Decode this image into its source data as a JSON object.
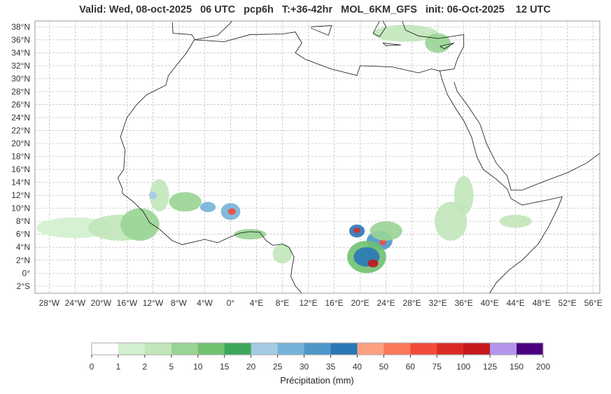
{
  "title": "Valid: Wed, 08-oct-2025   06 UTC   pcp6h   T:+36-42hr   MOL_6KM_GFS   init: 06-Oct-2025    12 UTC",
  "map": {
    "lon_range": [
      -30.2,
      57
    ],
    "lat_range": [
      -3.1,
      38.9
    ],
    "lat_ticks": [
      {
        "v": 38,
        "t": "38°N"
      },
      {
        "v": 36,
        "t": "36°N"
      },
      {
        "v": 34,
        "t": "34°N"
      },
      {
        "v": 32,
        "t": "32°N"
      },
      {
        "v": 30,
        "t": "30°N"
      },
      {
        "v": 28,
        "t": "28°N"
      },
      {
        "v": 26,
        "t": "26°N"
      },
      {
        "v": 24,
        "t": "24°N"
      },
      {
        "v": 22,
        "t": "22°N"
      },
      {
        "v": 20,
        "t": "20°N"
      },
      {
        "v": 18,
        "t": "18°N"
      },
      {
        "v": 16,
        "t": "16°N"
      },
      {
        "v": 14,
        "t": "14°N"
      },
      {
        "v": 12,
        "t": "12°N"
      },
      {
        "v": 10,
        "t": "10°N"
      },
      {
        "v": 8,
        "t": "8°N"
      },
      {
        "v": 6,
        "t": "6°N"
      },
      {
        "v": 4,
        "t": "4°N"
      },
      {
        "v": 2,
        "t": "2°N"
      },
      {
        "v": 0,
        "t": "0°"
      },
      {
        "v": -2,
        "t": "2°S"
      }
    ],
    "lon_ticks": [
      {
        "v": -28,
        "t": "28°W"
      },
      {
        "v": -24,
        "t": "24°W"
      },
      {
        "v": -20,
        "t": "20°W"
      },
      {
        "v": -16,
        "t": "16°W"
      },
      {
        "v": -12,
        "t": "12°W"
      },
      {
        "v": -8,
        "t": "8°W"
      },
      {
        "v": -4,
        "t": "4°W"
      },
      {
        "v": 0,
        "t": "0°"
      },
      {
        "v": 4,
        "t": "4°E"
      },
      {
        "v": 8,
        "t": "8°E"
      },
      {
        "v": 12,
        "t": "12°E"
      },
      {
        "v": 16,
        "t": "16°E"
      },
      {
        "v": 20,
        "t": "20°E"
      },
      {
        "v": 24,
        "t": "24°E"
      },
      {
        "v": 28,
        "t": "28°E"
      },
      {
        "v": 32,
        "t": "32°E"
      },
      {
        "v": 36,
        "t": "36°E"
      },
      {
        "v": 40,
        "t": "40°E"
      },
      {
        "v": 44,
        "t": "44°E"
      },
      {
        "v": 48,
        "t": "48°E"
      },
      {
        "v": 52,
        "t": "52°E"
      },
      {
        "v": 56,
        "t": "56°E"
      }
    ]
  },
  "precip_cells": [
    {
      "lon": -24,
      "lat": 7,
      "rlon": 6,
      "rlat": 1.6,
      "cls": 1
    },
    {
      "lon": -17,
      "lat": 7,
      "rlon": 5,
      "rlat": 2,
      "cls": 2
    },
    {
      "lon": -14,
      "lat": 7.5,
      "rlon": 3,
      "rlat": 2.5,
      "cls": 3
    },
    {
      "lon": -11,
      "lat": 12,
      "rlon": 1.5,
      "rlat": 2.5,
      "cls": 2
    },
    {
      "lon": -12,
      "lat": 12,
      "rlon": 0.6,
      "rlat": 0.6,
      "cls": 6
    },
    {
      "lon": -7,
      "lat": 11,
      "rlon": 2.5,
      "rlat": 1.5,
      "cls": 3
    },
    {
      "lon": -3.5,
      "lat": 10.2,
      "rlon": 1.2,
      "rlat": 0.8,
      "cls": 7
    },
    {
      "lon": 0,
      "lat": 9.5,
      "rlon": 1.5,
      "rlat": 1.3,
      "cls": 7
    },
    {
      "lon": 0.2,
      "lat": 9.5,
      "rlon": 0.6,
      "rlat": 0.5,
      "cls": 12
    },
    {
      "lon": 3,
      "lat": 6,
      "rlon": 2.5,
      "rlat": 0.8,
      "cls": 3
    },
    {
      "lon": 8,
      "lat": 3,
      "rlon": 1.5,
      "rlat": 1.5,
      "cls": 2
    },
    {
      "lon": 19.5,
      "lat": 6.5,
      "rlon": 1.2,
      "rlat": 1,
      "cls": 9
    },
    {
      "lon": 19.5,
      "lat": 6.6,
      "rlon": 0.5,
      "rlat": 0.4,
      "cls": 13
    },
    {
      "lon": 23,
      "lat": 5,
      "rlon": 2,
      "rlat": 1.5,
      "cls": 8
    },
    {
      "lon": 23.5,
      "lat": 4.8,
      "rlon": 0.5,
      "rlat": 0.5,
      "cls": 12
    },
    {
      "lon": 21,
      "lat": 2.5,
      "rlon": 3,
      "rlat": 2.5,
      "cls": 4
    },
    {
      "lon": 21,
      "lat": 2.5,
      "rlon": 2,
      "rlat": 1.5,
      "cls": 9
    },
    {
      "lon": 22,
      "lat": 1.5,
      "rlon": 0.8,
      "rlat": 0.6,
      "cls": 14
    },
    {
      "lon": 24,
      "lat": 6.5,
      "rlon": 2.5,
      "rlat": 1.5,
      "cls": 3
    },
    {
      "lon": 34,
      "lat": 8,
      "rlon": 2.5,
      "rlat": 3,
      "cls": 2
    },
    {
      "lon": 36,
      "lat": 12,
      "rlon": 1.5,
      "rlat": 3,
      "cls": 2
    },
    {
      "lon": 44,
      "lat": 8,
      "rlon": 2.5,
      "rlat": 1,
      "cls": 2
    },
    {
      "lon": 27,
      "lat": 37,
      "rlon": 5,
      "rlat": 1.3,
      "cls": 2
    },
    {
      "lon": 32,
      "lat": 35.5,
      "rlon": 2,
      "rlat": 1.5,
      "cls": 3
    }
  ],
  "colorbar": {
    "colors": [
      "#ffffff",
      "#d3f0d0",
      "#c1e6ba",
      "#98d494",
      "#6fc170",
      "#3ea75a",
      "#a3cce3",
      "#74b2d9",
      "#4d97c9",
      "#2a77b7",
      "#fca082",
      "#fb7858",
      "#f24b3a",
      "#da2a25",
      "#c5181c",
      "#b396ec",
      "#4b0080"
    ],
    "ticks": [
      "0",
      "1",
      "2",
      "5",
      "10",
      "15",
      "20",
      "25",
      "30",
      "35",
      "40",
      "50",
      "60",
      "75",
      "100",
      "125",
      "150",
      "200"
    ],
    "label": "Précipitation (mm)"
  }
}
